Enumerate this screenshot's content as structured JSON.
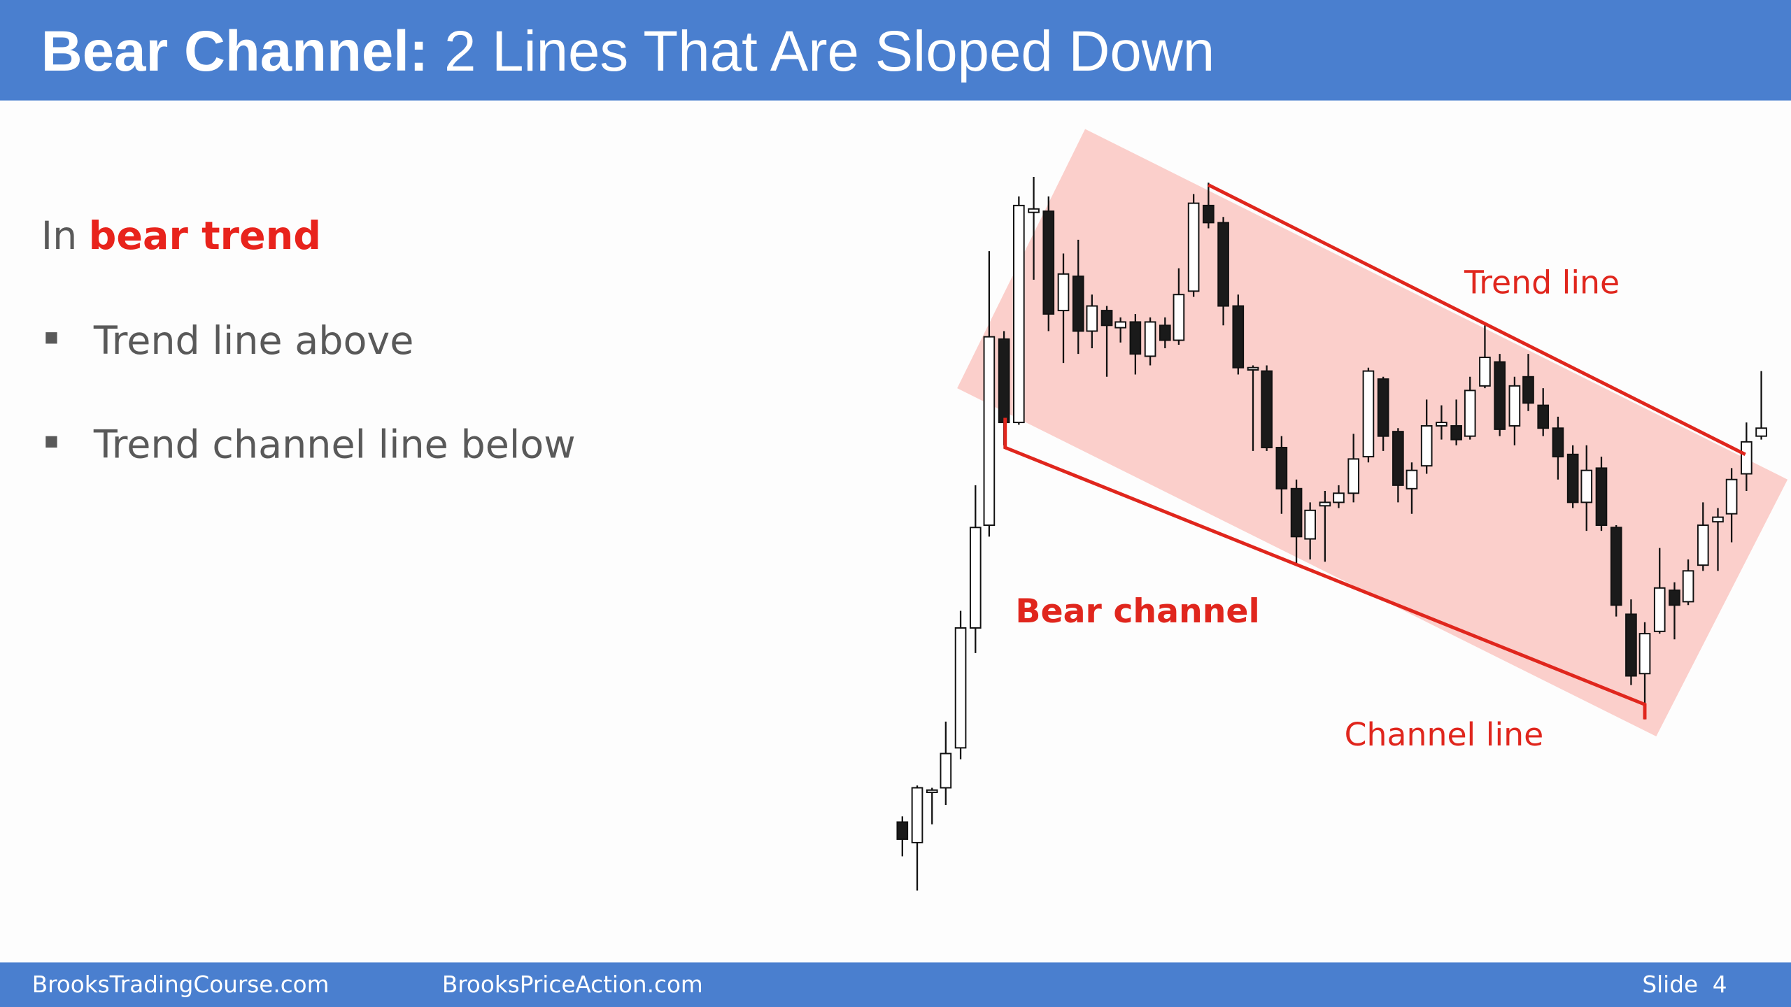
{
  "header": {
    "title_bold": "Bear Channel:",
    "title_rest": "2 Lines That Are Sloped Down"
  },
  "body": {
    "heading_prefix": "In",
    "heading_highlight": "bear trend",
    "bullets": [
      "Trend line above",
      "Trend channel line below"
    ]
  },
  "chart": {
    "labels": {
      "trend_line": "Trend line",
      "bear_channel": "Bear channel",
      "channel_line": "Channel line"
    }
  },
  "footer": {
    "left": "BrooksTradingCourse.com",
    "middle": "BrooksPriceAction.com",
    "slide": "Slide  4"
  }
}
